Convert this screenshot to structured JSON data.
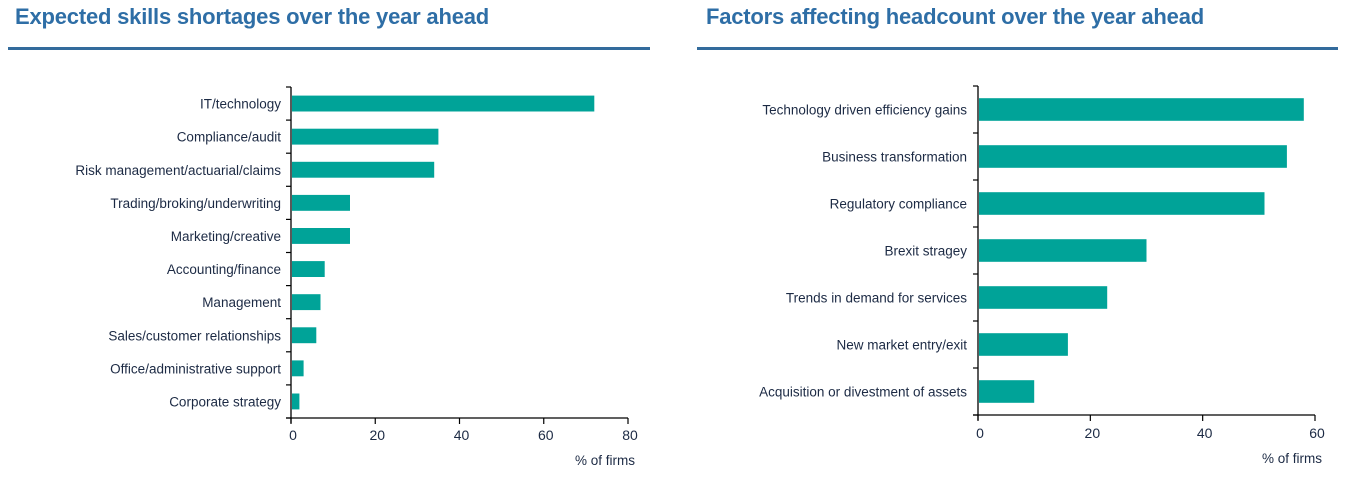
{
  "chart_data": [
    {
      "type": "bar",
      "orientation": "horizontal",
      "title": "Expected skills shortages over the year ahead",
      "categories": [
        "IT/technology",
        "Compliance/audit",
        "Risk management/actuarial/claims",
        "Trading/broking/underwriting",
        "Marketing/creative",
        "Accounting/finance",
        "Management",
        "Sales/customer relationships",
        "Office/administrative support",
        "Corporate strategy"
      ],
      "values": [
        72,
        35,
        34,
        14,
        14,
        8,
        7,
        6,
        3,
        2
      ],
      "xlabel": "% of firms",
      "ylabel": "",
      "xlim": [
        0,
        80
      ],
      "xticks": [
        0,
        20,
        40,
        60,
        80
      ],
      "grid": false,
      "bar_color": "#00a398"
    },
    {
      "type": "bar",
      "orientation": "horizontal",
      "title": "Factors affecting headcount over the year ahead",
      "categories": [
        "Technology driven efficiency gains",
        "Business transformation",
        "Regulatory compliance",
        "Brexit stragey",
        "Trends in demand for services",
        "New market entry/exit",
        "Acquisition or divestment of assets"
      ],
      "values": [
        58,
        55,
        51,
        30,
        23,
        16,
        10
      ],
      "xlabel": "% of firms",
      "ylabel": "",
      "xlim": [
        0,
        60
      ],
      "xticks": [
        0,
        20,
        40,
        60
      ],
      "grid": false,
      "bar_color": "#00a398"
    }
  ],
  "colors": {
    "title": "#2e6ea6",
    "rule": "#336b9c",
    "bar": "#00a398",
    "text": "#1c2a44",
    "axis": "#000000"
  }
}
